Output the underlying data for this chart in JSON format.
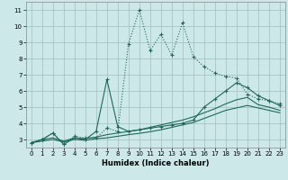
{
  "xlabel": "Humidex (Indice chaleur)",
  "background_color": "#cde8e8",
  "grid_color": "#dbb8b8",
  "line_color": "#1a6b5a",
  "xlim": [
    -0.5,
    23.5
  ],
  "ylim": [
    2.5,
    11.5
  ],
  "xticks": [
    0,
    1,
    2,
    3,
    4,
    5,
    6,
    7,
    8,
    9,
    10,
    11,
    12,
    13,
    14,
    15,
    16,
    17,
    18,
    19,
    20,
    21,
    22,
    23
  ],
  "yticks": [
    3,
    4,
    5,
    6,
    7,
    8,
    9,
    10,
    11
  ],
  "curve1_x": [
    0,
    1,
    2,
    3,
    4,
    5,
    6,
    7,
    8,
    9,
    10,
    11,
    12,
    13,
    14,
    15,
    16,
    17,
    18,
    19,
    20,
    21,
    22,
    23
  ],
  "curve1_y": [
    2.8,
    3.0,
    3.4,
    2.7,
    3.2,
    3.1,
    3.1,
    3.7,
    3.5,
    8.9,
    11.0,
    8.5,
    9.5,
    8.2,
    10.2,
    8.1,
    7.5,
    7.1,
    6.9,
    6.8,
    5.8,
    5.5,
    5.4,
    5.2
  ],
  "curve2_x": [
    0,
    1,
    2,
    3,
    4,
    5,
    6,
    7,
    8,
    9,
    10,
    11,
    12,
    13,
    14,
    15,
    16,
    17,
    18,
    19,
    20,
    21,
    22,
    23
  ],
  "curve2_y": [
    2.8,
    3.0,
    3.4,
    2.7,
    3.1,
    3.0,
    3.5,
    6.7,
    3.8,
    3.5,
    3.6,
    3.7,
    3.8,
    3.9,
    4.0,
    4.2,
    5.0,
    5.5,
    6.0,
    6.5,
    6.2,
    5.7,
    5.4,
    5.1
  ],
  "curve3_x": [
    0,
    1,
    2,
    3,
    4,
    5,
    6,
    7,
    8,
    9,
    10,
    11,
    12,
    13,
    14,
    15,
    16,
    17,
    18,
    19,
    20,
    21,
    22,
    23
  ],
  "curve3_y": [
    2.8,
    3.0,
    3.1,
    2.9,
    3.1,
    3.05,
    3.15,
    3.3,
    3.4,
    3.5,
    3.6,
    3.75,
    3.9,
    4.05,
    4.2,
    4.4,
    4.65,
    4.9,
    5.2,
    5.45,
    5.6,
    5.15,
    5.0,
    4.8
  ],
  "curve4_x": [
    0,
    1,
    2,
    3,
    4,
    5,
    6,
    7,
    8,
    9,
    10,
    11,
    12,
    13,
    14,
    15,
    16,
    17,
    18,
    19,
    20,
    21,
    22,
    23
  ],
  "curve4_y": [
    2.8,
    2.9,
    3.0,
    2.85,
    3.0,
    2.95,
    3.05,
    3.1,
    3.2,
    3.3,
    3.38,
    3.48,
    3.6,
    3.75,
    3.9,
    4.05,
    4.3,
    4.55,
    4.8,
    4.95,
    5.1,
    4.95,
    4.8,
    4.65
  ]
}
